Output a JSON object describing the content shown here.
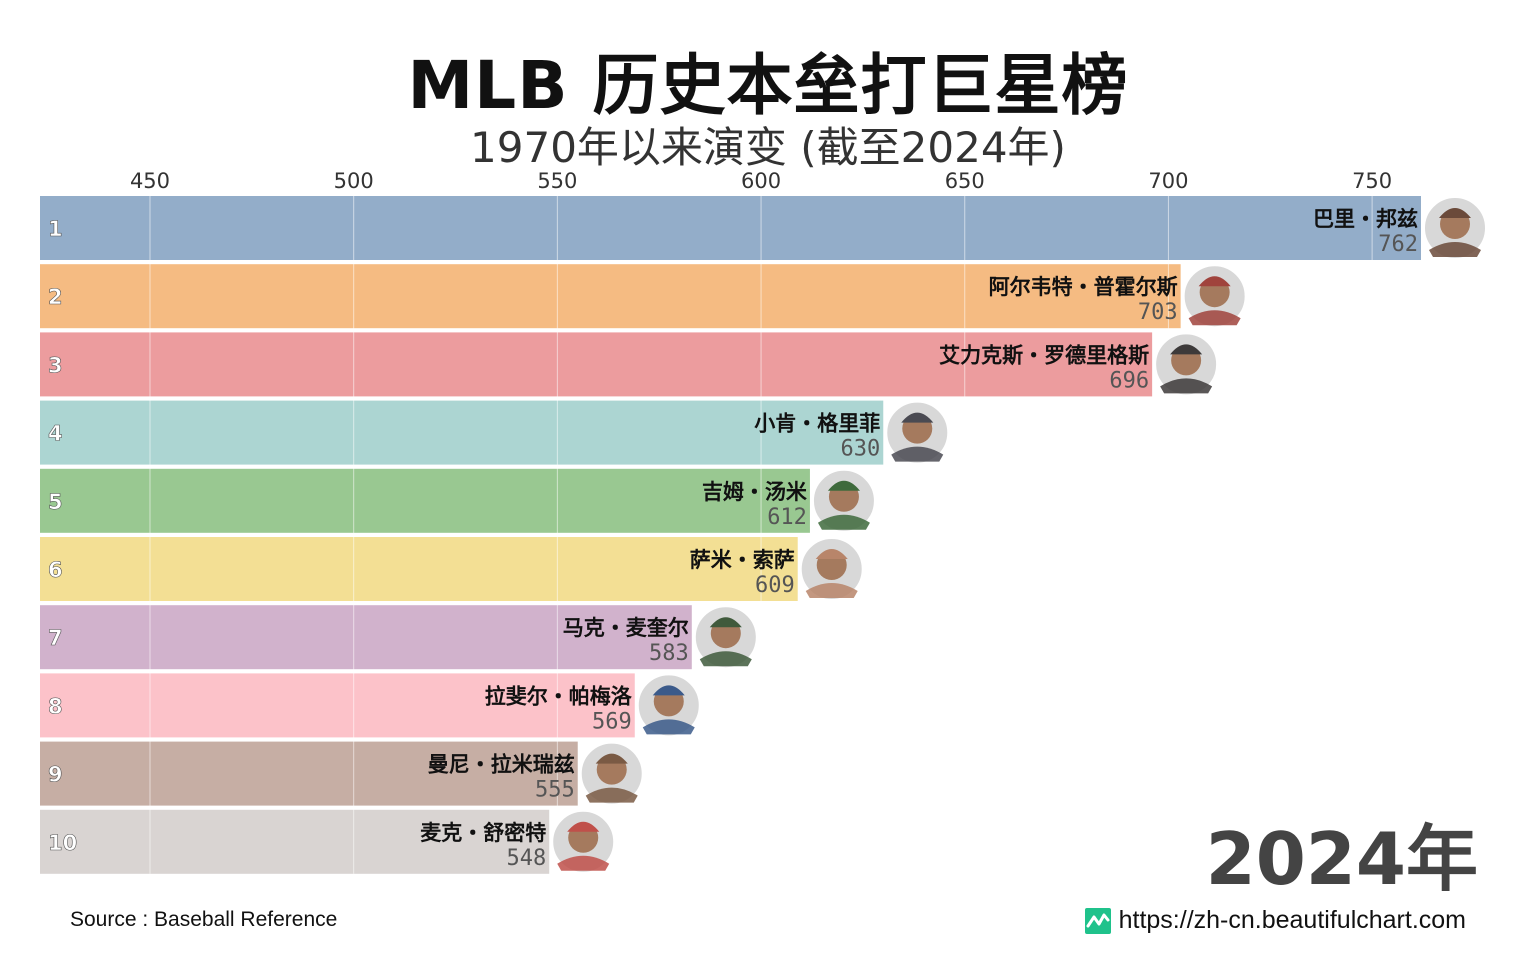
{
  "title": "MLB 历史本垒打巨星榜",
  "subtitle": "1970年以来演变 (截至2024年)",
  "year_label": "2024年",
  "source": "Source : Baseball Reference",
  "site_url": "https://zh-cn.beautifulchart.com",
  "site_icon": "chart-line-icon",
  "chart_data": {
    "type": "bar",
    "orientation": "horizontal",
    "title": "MLB 历史本垒打巨星榜",
    "subtitle": "1970年以来演变 (截至2024年)",
    "xlim": [
      423,
      762
    ],
    "xticks": [
      450,
      500,
      550,
      600,
      650,
      700,
      750
    ],
    "grid": true,
    "ranks": [
      "1",
      "2",
      "3",
      "4",
      "5",
      "6",
      "7",
      "8",
      "9",
      "10"
    ],
    "categories": [
      "巴里・邦兹",
      "阿尔韦特・普霍尔斯",
      "艾力克斯・罗德里格斯",
      "小肯・格里菲",
      "吉姆・汤米",
      "萨米・索萨",
      "马克・麦奎尔",
      "拉斐尔・帕梅洛",
      "曼尼・拉米瑞兹",
      "麦克・舒密特"
    ],
    "values": [
      762,
      703,
      696,
      630,
      612,
      609,
      583,
      569,
      555,
      548
    ],
    "value_labels": [
      "762",
      "703",
      "696",
      "630",
      "612",
      "609",
      "583",
      "569",
      "555",
      "548"
    ],
    "colors": [
      "#93adc9",
      "#f5bb82",
      "#ec9c9e",
      "#acd5d2",
      "#99c891",
      "#f3df94",
      "#d1b2cc",
      "#fcc2c9",
      "#c6aea4",
      "#d9d4d2"
    ],
    "avatar_colors": [
      "#6b4a3a",
      "#a0433c",
      "#3d3a3a",
      "#4a4a52",
      "#3e6a3c",
      "#b8856a",
      "#405a3c",
      "#3b5a8a",
      "#7a5a44",
      "#c0504a"
    ]
  }
}
